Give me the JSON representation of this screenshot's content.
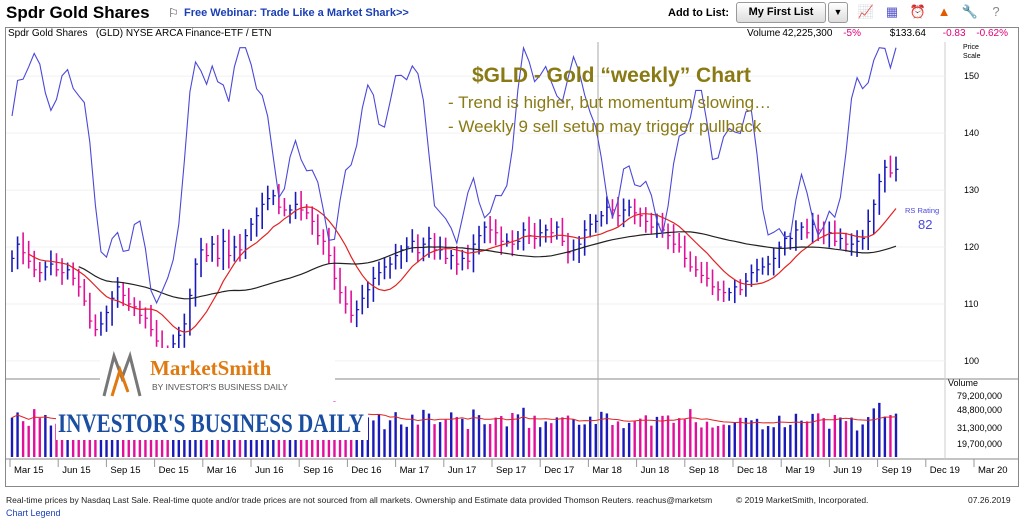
{
  "header": {
    "title": "Spdr Gold Shares",
    "webinar_link": "Free Webinar: Trade Like a Market Shark>>",
    "add_to_list_label": "Add to List:",
    "list_selected": "My First List",
    "icons": [
      "chart-icon",
      "compare-icon",
      "alert-icon",
      "chart-type-icon",
      "tools-icon",
      "help-icon"
    ]
  },
  "infobar": {
    "name": "Spdr Gold Shares",
    "symbol_desc": "(GLD) NYSE ARCA Finance-ETF / ETN",
    "volume_label": "Volume",
    "volume": "42,225,300",
    "volume_change": "-5%",
    "price": "$133.64",
    "price_change": "-0.83",
    "pct_change": "-0.62%"
  },
  "annotation": {
    "title": "$GLD - Gold “weekly” Chart",
    "line1": "- Trend is higher, but momentum slowing…",
    "line2": "- Weekly 9 sell setup may trigger pullback"
  },
  "logos": {
    "marketsmith": "MarketSmith",
    "marketsmith_sub": "BY INVESTOR'S BUSINESS DAILY",
    "ibd": "INVESTOR'S BUSINESS DAILY"
  },
  "rs": {
    "label": "RS Rating",
    "value": "82"
  },
  "footer": {
    "disclaimer": "Real-time prices by Nasdaq Last Sale. Real-time quote and/or trade prices are not sourced from all markets. Ownership and Estimate data provided Thomson Reuters. reachus@marketsm",
    "copyright": "© 2019 MarketSmith, Incorporated.",
    "date": "07.26.2019",
    "legend_link": "Chart Legend"
  },
  "chart_data": {
    "type": "line",
    "price_axis": {
      "label": "Price Scale",
      "ticks": [
        100,
        110,
        120,
        130,
        140,
        150
      ],
      "ylim": [
        97,
        156
      ]
    },
    "volume_axis": {
      "label": "Volume",
      "ticks": [
        "79,200,000",
        "48,800,000",
        "31,300,000",
        "19,700,000"
      ]
    },
    "x_labels": [
      "Mar 15",
      "Jun 15",
      "Sep 15",
      "Dec 15",
      "Mar 16",
      "Jun 16",
      "Sep 16",
      "Dec 16",
      "Mar 17",
      "Jun 17",
      "Sep 17",
      "Dec 17",
      "Mar 18",
      "Jun 18",
      "Sep 18",
      "Dec 18",
      "Mar 19",
      "Jun 19",
      "Sep 19",
      "Dec 19",
      "Mar 20"
    ],
    "weekly_close": [
      118.0,
      120.5,
      119.0,
      117.5,
      116.0,
      115.5,
      116.5,
      117.0,
      116.0,
      115.5,
      116.0,
      114.5,
      113.0,
      110.5,
      107.0,
      105.5,
      106.5,
      108.5,
      111.0,
      113.0,
      111.5,
      110.0,
      109.5,
      108.0,
      107.5,
      105.5,
      103.5,
      101.5,
      101.0,
      103.0,
      104.5,
      106.5,
      111.5,
      117.0,
      119.5,
      118.5,
      120.5,
      118.0,
      121.0,
      118.5,
      120.0,
      119.5,
      122.0,
      124.0,
      125.5,
      127.5,
      128.5,
      129.0,
      127.0,
      126.5,
      126.5,
      127.5,
      126.5,
      126.0,
      124.5,
      122.0,
      121.0,
      118.5,
      114.5,
      112.0,
      110.0,
      108.0,
      109.0,
      111.0,
      112.5,
      114.5,
      115.5,
      116.5,
      117.0,
      118.5,
      119.5,
      120.0,
      121.0,
      119.0,
      120.5,
      121.5,
      119.5,
      119.5,
      118.0,
      118.5,
      117.0,
      118.0,
      117.5,
      120.5,
      122.0,
      123.5,
      123.0,
      122.5,
      121.0,
      121.0,
      120.5,
      121.0,
      123.0,
      122.0,
      121.5,
      122.5,
      123.0,
      122.5,
      123.5,
      121.0,
      119.0,
      119.5,
      120.5,
      123.0,
      124.0,
      124.5,
      125.5,
      127.0,
      126.5,
      125.5,
      126.5,
      127.0,
      126.0,
      125.5,
      124.5,
      123.5,
      124.0,
      123.0,
      122.0,
      120.5,
      120.0,
      118.0,
      116.5,
      116.0,
      115.0,
      114.5,
      113.0,
      112.5,
      112.0,
      112.0,
      113.0,
      112.5,
      114.0,
      115.5,
      116.0,
      116.5,
      117.0,
      118.0,
      120.0,
      121.5,
      121.5,
      123.0,
      123.5,
      122.5,
      124.0,
      123.0,
      122.0,
      122.5,
      121.0,
      121.5,
      120.5,
      120.5,
      121.0,
      121.5,
      124.5,
      127.5,
      131.5,
      134.0,
      133.0,
      133.64
    ],
    "ma_fast_color": "#e22222",
    "ma_slow_color": "#222222",
    "rs_line_color": "#4b48d8",
    "up_bar_color": "#1a1ab8",
    "down_bar_color": "#e0109a"
  }
}
